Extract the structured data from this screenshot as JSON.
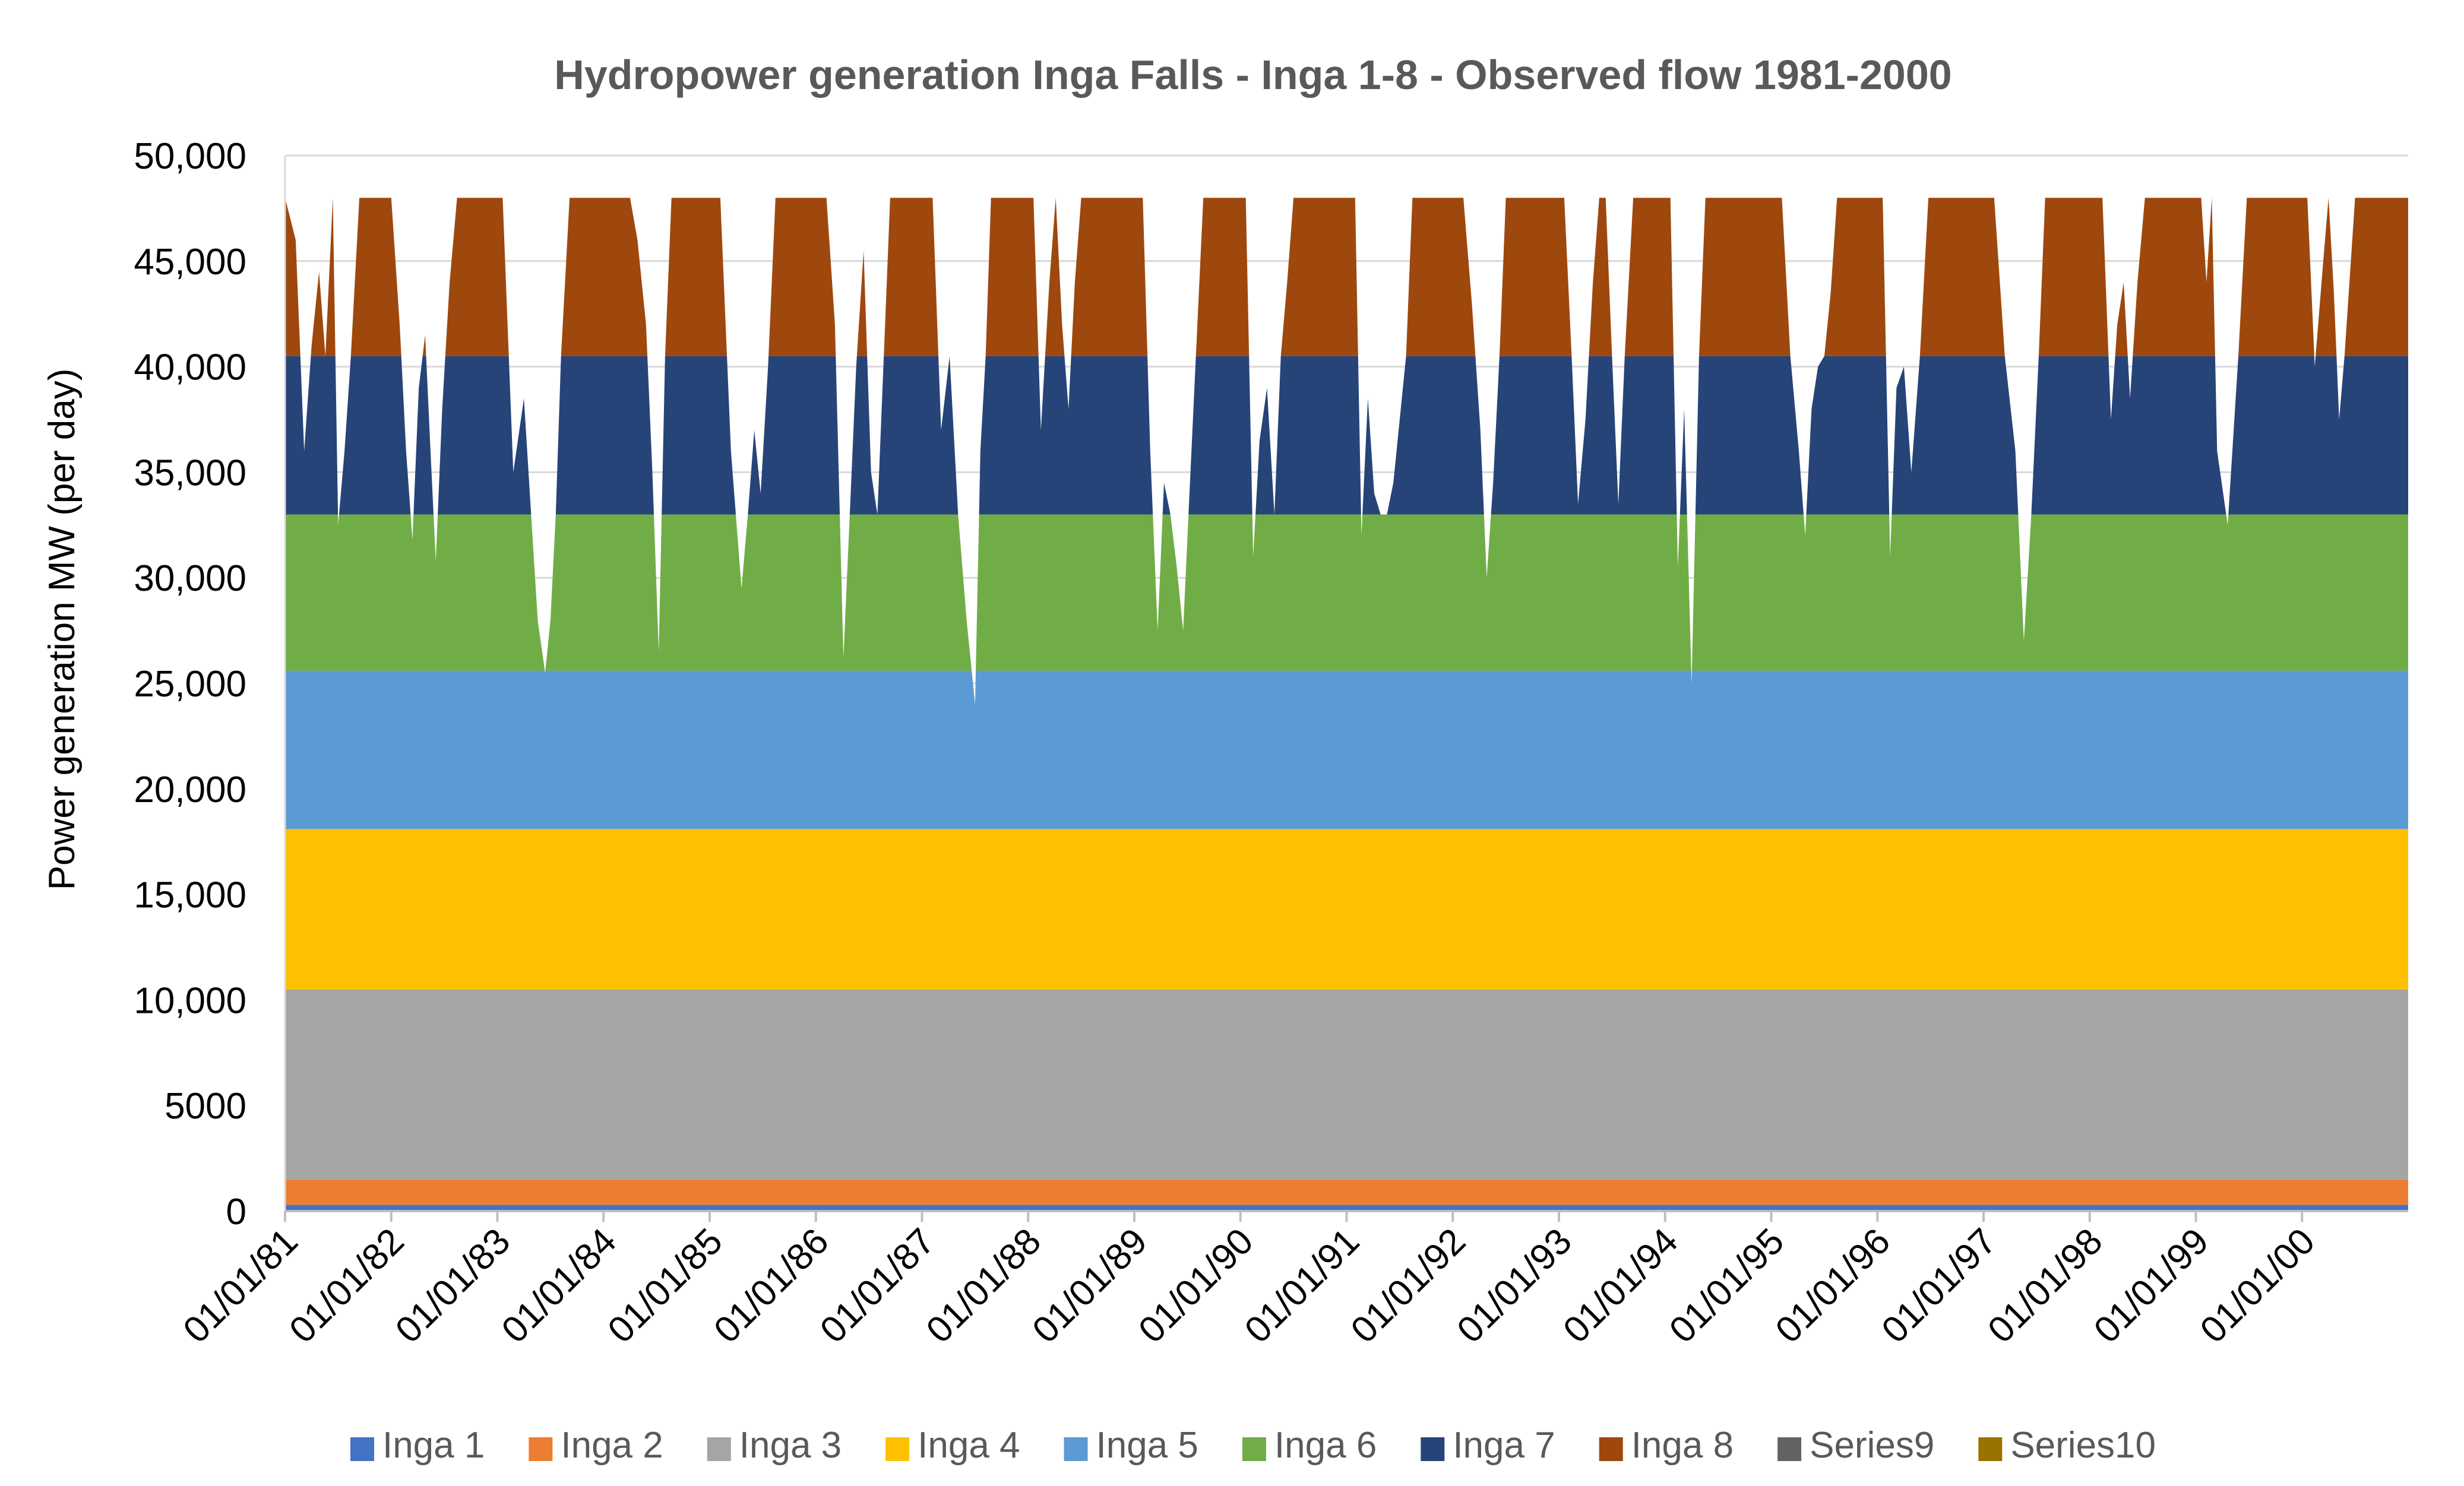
{
  "chart_data": {
    "type": "area",
    "stacked": true,
    "title": "Hydropower generation Inga Falls - Inga 1-8 - Observed flow 1981-2000",
    "xlabel": "",
    "ylabel": "Power generation MW (per day)",
    "ylim": [
      0,
      50000
    ],
    "y_ticks": [
      {
        "value": 0,
        "label": "0"
      },
      {
        "value": 5000,
        "label": "5000"
      },
      {
        "value": 10000,
        "label": "10,000"
      },
      {
        "value": 15000,
        "label": "15,000"
      },
      {
        "value": 20000,
        "label": "20,000"
      },
      {
        "value": 25000,
        "label": "25,000"
      },
      {
        "value": 30000,
        "label": "30,000"
      },
      {
        "value": 35000,
        "label": "35,000"
      },
      {
        "value": 40000,
        "label": "40,000"
      },
      {
        "value": 45000,
        "label": "45,000"
      },
      {
        "value": 50000,
        "label": "50,000"
      }
    ],
    "xlim": [
      1981.0,
      2001.0
    ],
    "x_ticks": [
      {
        "value": 1981,
        "label": "01/01/81"
      },
      {
        "value": 1982,
        "label": "01/01/82"
      },
      {
        "value": 1983,
        "label": "01/01/83"
      },
      {
        "value": 1984,
        "label": "01/01/84"
      },
      {
        "value": 1985,
        "label": "01/01/85"
      },
      {
        "value": 1986,
        "label": "01/01/86"
      },
      {
        "value": 1987,
        "label": "01/01/87"
      },
      {
        "value": 1988,
        "label": "01/01/88"
      },
      {
        "value": 1989,
        "label": "01/01/89"
      },
      {
        "value": 1990,
        "label": "01/01/90"
      },
      {
        "value": 1991,
        "label": "01/01/91"
      },
      {
        "value": 1992,
        "label": "01/01/92"
      },
      {
        "value": 1993,
        "label": "01/01/93"
      },
      {
        "value": 1994,
        "label": "01/01/94"
      },
      {
        "value": 1995,
        "label": "01/01/95"
      },
      {
        "value": 1996,
        "label": "01/01/96"
      },
      {
        "value": 1997,
        "label": "01/01/97"
      },
      {
        "value": 1998,
        "label": "01/01/98"
      },
      {
        "value": 1999,
        "label": "01/01/99"
      },
      {
        "value": 2000,
        "label": "01/01/00"
      }
    ],
    "grid": {
      "horizontal": true,
      "vertical": false
    },
    "legend_position": "bottom",
    "series": [
      {
        "name": "Inga 1",
        "color": "#4472C4",
        "band": [
          0,
          300
        ]
      },
      {
        "name": "Inga 2",
        "color": "#ED7D31",
        "band": [
          300,
          1500
        ]
      },
      {
        "name": "Inga 3",
        "color": "#A5A5A5",
        "band": [
          1500,
          10500
        ]
      },
      {
        "name": "Inga 4",
        "color": "#FFC000",
        "band": [
          10500,
          18100
        ]
      },
      {
        "name": "Inga 5",
        "color": "#5B9BD5",
        "band": [
          18100,
          25600
        ]
      },
      {
        "name": "Inga 6",
        "color": "#70AD47",
        "band": [
          25600,
          33000
        ]
      },
      {
        "name": "Inga 7",
        "color": "#264478",
        "band": [
          33000,
          40500
        ]
      },
      {
        "name": "Inga 8",
        "color": "#9E480E",
        "band": [
          40500,
          48000
        ]
      },
      {
        "name": "Series9",
        "color": "#636363",
        "band": [
          0,
          0
        ]
      },
      {
        "name": "Series10",
        "color": "#997300",
        "band": [
          0,
          0
        ]
      }
    ],
    "total_generation": {
      "x": [
        1981.0,
        1981.1,
        1981.18,
        1981.25,
        1981.32,
        1981.38,
        1981.45,
        1981.5,
        1981.56,
        1981.62,
        1981.7,
        1982.0,
        1982.08,
        1982.14,
        1982.2,
        1982.26,
        1982.32,
        1982.37,
        1982.42,
        1982.48,
        1982.55,
        1982.62,
        1982.7,
        1983.05,
        1983.15,
        1983.25,
        1983.38,
        1983.45,
        1983.5,
        1983.55,
        1983.6,
        1983.68,
        1983.75,
        1984.25,
        1984.32,
        1984.4,
        1984.46,
        1984.52,
        1984.58,
        1984.64,
        1984.7,
        1985.1,
        1985.2,
        1985.3,
        1985.36,
        1985.42,
        1985.48,
        1985.55,
        1985.62,
        1985.7,
        1986.1,
        1986.18,
        1986.26,
        1986.32,
        1986.38,
        1986.45,
        1986.52,
        1986.58,
        1986.64,
        1986.7,
        1987.1,
        1987.18,
        1987.26,
        1987.34,
        1987.42,
        1987.5,
        1987.55,
        1987.6,
        1987.65,
        1987.72,
        1988.05,
        1988.12,
        1988.2,
        1988.26,
        1988.32,
        1988.38,
        1988.44,
        1988.5,
        1988.56,
        1988.62,
        1988.7,
        1989.08,
        1989.15,
        1989.22,
        1989.28,
        1989.34,
        1989.4,
        1989.46,
        1989.52,
        1989.58,
        1989.65,
        1989.72,
        1990.05,
        1990.12,
        1990.18,
        1990.25,
        1990.32,
        1990.38,
        1990.44,
        1990.5,
        1990.56,
        1990.62,
        1990.7,
        1991.08,
        1991.14,
        1991.2,
        1991.26,
        1991.32,
        1991.38,
        1991.44,
        1991.5,
        1991.56,
        1991.62,
        1991.7,
        1992.1,
        1992.18,
        1992.26,
        1992.32,
        1992.38,
        1992.44,
        1992.5,
        1992.56,
        1992.62,
        1992.7,
        1993.05,
        1993.12,
        1993.18,
        1993.25,
        1993.32,
        1993.38,
        1993.44,
        1993.5,
        1993.56,
        1993.62,
        1993.7,
        1994.05,
        1994.12,
        1994.18,
        1994.25,
        1994.32,
        1994.38,
        1994.44,
        1994.5,
        1994.56,
        1994.62,
        1994.7,
        1995.1,
        1995.18,
        1995.26,
        1995.32,
        1995.38,
        1995.44,
        1995.5,
        1995.56,
        1995.62,
        1995.7,
        1996.05,
        1996.12,
        1996.18,
        1996.25,
        1996.32,
        1996.4,
        1996.48,
        1996.55,
        1996.62,
        1996.7,
        1997.1,
        1997.2,
        1997.3,
        1997.38,
        1997.45,
        1997.52,
        1997.58,
        1997.65,
        1997.72,
        1998.05,
        1998.12,
        1998.2,
        1998.26,
        1998.32,
        1998.38,
        1998.45,
        1998.52,
        1998.6,
        1998.7,
        1999.05,
        1999.1,
        1999.15,
        1999.2,
        1999.3,
        1999.4,
        1999.48,
        1999.55,
        1999.62,
        1999.7,
        2000.05,
        2000.12,
        2000.2,
        2000.25,
        2000.3,
        2000.35,
        2000.4,
        2000.5,
        2000.6,
        2001.0
      ],
      "values": [
        48000,
        46000,
        36000,
        41000,
        44500,
        40500,
        48000,
        32500,
        36000,
        40500,
        48000,
        48000,
        42000,
        36000,
        31800,
        39000,
        41500,
        36000,
        30800,
        38000,
        44000,
        48000,
        48000,
        48000,
        35000,
        38500,
        28000,
        25500,
        28000,
        33000,
        40500,
        48000,
        48000,
        48000,
        46000,
        42000,
        35000,
        26500,
        40500,
        48000,
        48000,
        48000,
        36000,
        29500,
        33000,
        37000,
        34000,
        40000,
        48000,
        48000,
        48000,
        42000,
        26200,
        33000,
        40000,
        45500,
        35000,
        33000,
        40500,
        48000,
        48000,
        37000,
        40500,
        33000,
        28000,
        24000,
        36000,
        40500,
        48000,
        48000,
        48000,
        37000,
        44000,
        48000,
        42000,
        38000,
        44000,
        48000,
        48000,
        48000,
        48000,
        48000,
        36000,
        27500,
        34500,
        33000,
        30500,
        27500,
        34000,
        40500,
        48000,
        48000,
        48000,
        31000,
        36500,
        39000,
        33000,
        40500,
        44000,
        48000,
        48000,
        48000,
        48000,
        48000,
        32000,
        38500,
        34000,
        33000,
        33000,
        34500,
        37500,
        40500,
        48000,
        48000,
        48000,
        43000,
        37000,
        30000,
        34500,
        40500,
        48000,
        48000,
        48000,
        48000,
        48000,
        40500,
        33500,
        37500,
        44000,
        48000,
        48000,
        40500,
        33500,
        40500,
        48000,
        48000,
        30500,
        38000,
        25000,
        40500,
        48000,
        48000,
        48000,
        48000,
        48000,
        48000,
        48000,
        40500,
        36000,
        32000,
        38000,
        40000,
        40500,
        43500,
        48000,
        48000,
        48000,
        31000,
        39000,
        40000,
        35000,
        40500,
        48000,
        48000,
        48000,
        48000,
        48000,
        40500,
        36000,
        27000,
        33000,
        40500,
        48000,
        48000,
        48000,
        48000,
        48000,
        37500,
        42000,
        44000,
        38500,
        44000,
        48000,
        48000,
        48000,
        48000,
        44000,
        48000,
        36000,
        32500,
        40500,
        48000,
        48000,
        48000,
        48000,
        48000,
        40000,
        45000,
        48000,
        43500,
        37500,
        40500,
        48000,
        48000,
        48000
      ]
    }
  }
}
